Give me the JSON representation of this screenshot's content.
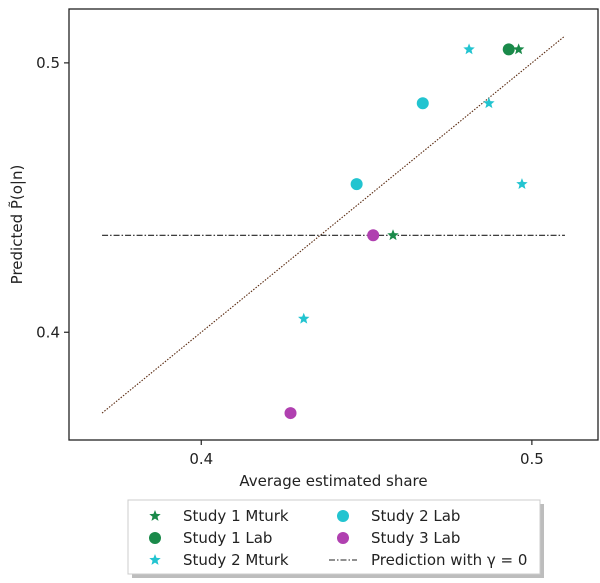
{
  "chart_data": {
    "type": "scatter",
    "title": "",
    "xlabel": "Average estimated share",
    "ylabel": "Predicted P̃(o|n)",
    "xlim": [
      0.36,
      0.52
    ],
    "ylim": [
      0.36,
      0.52
    ],
    "xticks": [
      {
        "value": 0.4,
        "label": "0.4"
      },
      {
        "value": 0.5,
        "label": "0.5"
      }
    ],
    "yticks": [
      {
        "value": 0.4,
        "label": "0.4"
      },
      {
        "value": 0.5,
        "label": "0.5"
      }
    ],
    "grid": false,
    "legend_position": "bottom",
    "series": [
      {
        "name": "Study 1 Mturk",
        "marker": "star",
        "color": "#1a8a4a",
        "points": [
          {
            "x": 0.496,
            "y": 0.505
          },
          {
            "x": 0.458,
            "y": 0.436
          }
        ]
      },
      {
        "name": "Study 1 Lab",
        "marker": "circle",
        "color": "#1a8a4a",
        "points": [
          {
            "x": 0.493,
            "y": 0.505
          }
        ]
      },
      {
        "name": "Study 2 Mturk",
        "marker": "star",
        "color": "#22c4d0",
        "points": [
          {
            "x": 0.481,
            "y": 0.505
          },
          {
            "x": 0.487,
            "y": 0.485
          },
          {
            "x": 0.497,
            "y": 0.455
          },
          {
            "x": 0.431,
            "y": 0.405
          }
        ]
      },
      {
        "name": "Study 2 Lab",
        "marker": "circle",
        "color": "#22c4d0",
        "points": [
          {
            "x": 0.467,
            "y": 0.485
          },
          {
            "x": 0.447,
            "y": 0.455
          }
        ]
      },
      {
        "name": "Study 3 Lab",
        "marker": "circle",
        "color": "#b040b0",
        "points": [
          {
            "x": 0.452,
            "y": 0.436
          },
          {
            "x": 0.427,
            "y": 0.37
          }
        ]
      }
    ],
    "lines": [
      {
        "name": "",
        "style": "dotted",
        "color": "#5a2a10",
        "points": [
          {
            "x": 0.37,
            "y": 0.37
          },
          {
            "x": 0.51,
            "y": 0.51
          }
        ]
      },
      {
        "name": "Prediction with γ = 0",
        "style": "dash-dot",
        "color": "#222222",
        "points": [
          {
            "x": 0.37,
            "y": 0.436
          },
          {
            "x": 0.51,
            "y": 0.436
          }
        ]
      }
    ],
    "legend": [
      {
        "label": "Study 1 Mturk",
        "marker": "star",
        "color": "#1a8a4a"
      },
      {
        "label": "Study 2 Lab",
        "marker": "circle",
        "color": "#22c4d0"
      },
      {
        "label": "Study 1 Lab",
        "marker": "circle",
        "color": "#1a8a4a"
      },
      {
        "label": "Study 3 Lab",
        "marker": "circle",
        "color": "#b040b0"
      },
      {
        "label": "Study 2 Mturk",
        "marker": "star",
        "color": "#22c4d0"
      },
      {
        "label": "Prediction with γ = 0",
        "marker": "dash-dot",
        "color": "#222222"
      }
    ]
  }
}
